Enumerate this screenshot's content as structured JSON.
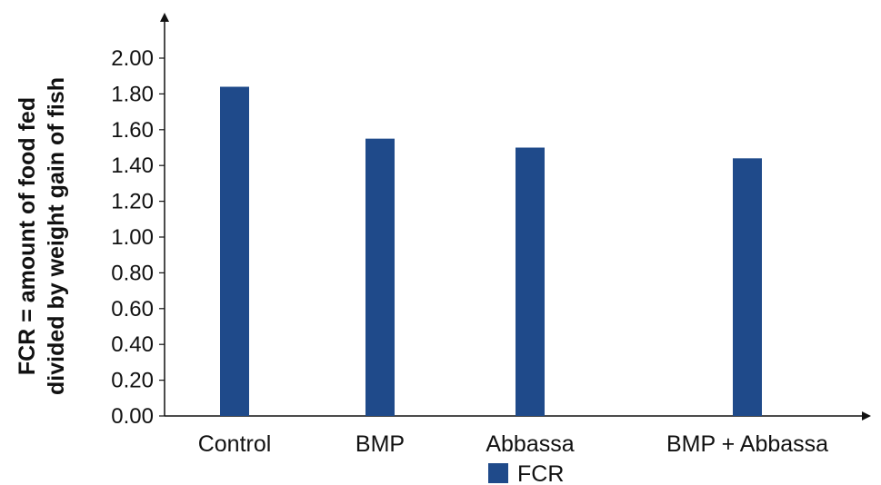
{
  "chart_data": {
    "type": "bar",
    "categories": [
      "Control",
      "BMP",
      "Abbassa",
      "BMP + Abbassa"
    ],
    "series": [
      {
        "name": "FCR",
        "values": [
          1.84,
          1.55,
          1.5,
          1.44
        ]
      }
    ],
    "ylabel_lines": [
      "FCR = amount of food fed",
      "divided by weight gain of fish"
    ],
    "ylim": [
      0,
      2.0
    ],
    "yticks": [
      "0.00",
      "0.20",
      "0.40",
      "0.60",
      "0.80",
      "1.00",
      "1.20",
      "1.40",
      "1.60",
      "1.80",
      "2.00"
    ],
    "grid": false,
    "legend_position": "bottom-center",
    "colors": {
      "bar": "#1f4a8a",
      "axis": "#111111"
    }
  }
}
